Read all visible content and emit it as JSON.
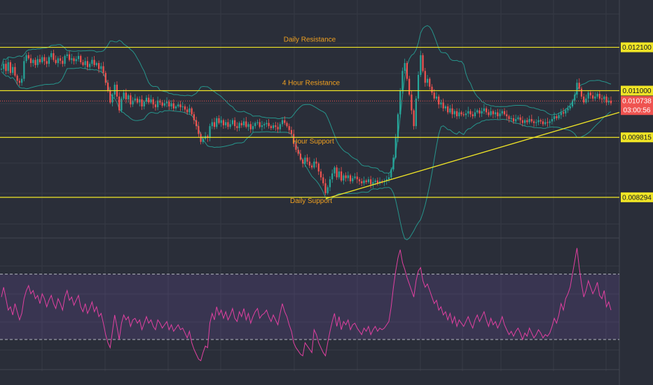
{
  "chart_data": {
    "type": "candlestick",
    "title": "",
    "xlabel": "",
    "ylabel": "",
    "ylim": [
      0.00735,
      0.0133
    ],
    "grid": true,
    "horizontal_levels": [
      {
        "name": "daily-resistance",
        "label": "Daily Resistance",
        "value": 0.0121,
        "value_label": "0.012100",
        "color": "#f0e526"
      },
      {
        "name": "4-hour-resistance",
        "label": "4 Hour Resistance",
        "value": 0.011,
        "value_label": "0.011000",
        "color": "#f0e526"
      },
      {
        "name": "4-hour-support",
        "label": "Hour Support",
        "value": 0.009815,
        "value_label": "0.009815",
        "color": "#f0e526"
      },
      {
        "name": "daily-support",
        "label": "Daily Support",
        "value": 0.008294,
        "value_label": "0.008294",
        "color": "#f0e526"
      }
    ],
    "current_price": {
      "value": 0.010738,
      "value_label": "0.010738",
      "countdown": "03:00:56",
      "color": "#ef5350"
    },
    "trendline": {
      "from_index": 0.0,
      "to_index": 1.0,
      "from_value": 0.00826,
      "to_value": 0.01045,
      "color": "#f0e526"
    },
    "series_closes": [
      0.01155,
      0.01168,
      0.0115,
      0.01172,
      0.01145,
      0.0116,
      0.01138,
      0.01125,
      0.0112,
      0.0113,
      0.01175,
      0.0119,
      0.01182,
      0.0117,
      0.01178,
      0.01165,
      0.0118,
      0.01172,
      0.01185,
      0.01175,
      0.01168,
      0.01185,
      0.01195,
      0.01178,
      0.0117,
      0.01182,
      0.01176,
      0.01168,
      0.01188,
      0.01192,
      0.01178,
      0.01182,
      0.01175,
      0.0118,
      0.01188,
      0.01172,
      0.01165,
      0.01175,
      0.0116,
      0.01168,
      0.01178,
      0.01165,
      0.0117,
      0.01155,
      0.01162,
      0.01145,
      0.0112,
      0.011,
      0.0107,
      0.0109,
      0.01115,
      0.01085,
      0.0105,
      0.0108,
      0.01095,
      0.01078,
      0.01088,
      0.01065,
      0.01075,
      0.0108,
      0.0107,
      0.01078,
      0.0106,
      0.01072,
      0.01082,
      0.0107,
      0.01078,
      0.01065,
      0.01058,
      0.01075,
      0.0107,
      0.01062,
      0.01068,
      0.01072,
      0.0106,
      0.01068,
      0.01055,
      0.0106,
      0.01065,
      0.01058,
      0.0106,
      0.01052,
      0.01045,
      0.01055,
      0.0104,
      0.01025,
      0.0101,
      0.0099,
      0.0097,
      0.00978,
      0.00985,
      0.0098,
      0.0101,
      0.0102,
      0.01008,
      0.0103,
      0.01018,
      0.01025,
      0.01012,
      0.0102,
      0.01008,
      0.01015,
      0.01025,
      0.0101,
      0.01005,
      0.01018,
      0.01012,
      0.01022,
      0.01008,
      0.01015,
      0.01002,
      0.0101,
      0.01018,
      0.0102,
      0.01008,
      0.01012,
      0.01015,
      0.01018,
      0.0101,
      0.01005,
      0.01012,
      0.01008,
      0.01002,
      0.01015,
      0.01025,
      0.01018,
      0.0101,
      0.01,
      0.0099,
      0.00965,
      0.0095,
      0.0094,
      0.00925,
      0.00915,
      0.0093,
      0.0092,
      0.0091,
      0.00905,
      0.0092,
      0.00915,
      0.00895,
      0.0088,
      0.00865,
      0.0084,
      0.00855,
      0.00875,
      0.0089,
      0.00905,
      0.0088,
      0.00895,
      0.00872,
      0.00885,
      0.00878,
      0.00885,
      0.0087,
      0.00878,
      0.00882,
      0.00875,
      0.0087,
      0.00865,
      0.00872,
      0.00868,
      0.00875,
      0.00862,
      0.00868,
      0.00872,
      0.00865,
      0.0087,
      0.00868,
      0.0087,
      0.00875,
      0.0088,
      0.009,
      0.0093,
      0.0098,
      0.0104,
      0.011,
      0.0115,
      0.0117,
      0.0113,
      0.0109,
      0.0105,
      0.0101,
      0.0108,
      0.0114,
      0.0119,
      0.0115,
      0.0112,
      0.0113,
      0.0111,
      0.01095,
      0.0108,
      0.01085,
      0.01065,
      0.0107,
      0.01055,
      0.0106,
      0.01045,
      0.01055,
      0.0104,
      0.01048,
      0.01035,
      0.01045,
      0.0104,
      0.01038,
      0.01042,
      0.01048,
      0.0104,
      0.01035,
      0.01045,
      0.0105,
      0.01042,
      0.01048,
      0.01055,
      0.01045,
      0.01038,
      0.01048,
      0.0104,
      0.01045,
      0.01035,
      0.01042,
      0.01048,
      0.0104,
      0.01035,
      0.01028,
      0.0103,
      0.01022,
      0.01028,
      0.01032,
      0.01025,
      0.01018,
      0.01025,
      0.0102,
      0.01028,
      0.01022,
      0.01018,
      0.0102,
      0.01025,
      0.01022,
      0.01015,
      0.0102,
      0.01018,
      0.01022,
      0.01028,
      0.01035,
      0.0103,
      0.01038,
      0.01045,
      0.01042,
      0.0105,
      0.01055,
      0.0106,
      0.01075,
      0.0109,
      0.0112,
      0.01105,
      0.01085,
      0.0107,
      0.0108,
      0.01095,
      0.01088,
      0.0108,
      0.01085,
      0.01092,
      0.0108,
      0.01078,
      0.01085,
      0.0107,
      0.01074,
      0.01068
    ],
    "rsi": {
      "upper_band": 70,
      "lower_band": 30,
      "ylim": [
        15,
        90
      ],
      "values": [
        56,
        62,
        55,
        48,
        50,
        45,
        52,
        47,
        42,
        46,
        55,
        60,
        63,
        58,
        60,
        55,
        57,
        52,
        58,
        55,
        50,
        54,
        57,
        52,
        49,
        55,
        52,
        48,
        56,
        60,
        54,
        56,
        51,
        54,
        57,
        50,
        47,
        52,
        46,
        49,
        53,
        47,
        50,
        44,
        46,
        40,
        33,
        28,
        25,
        35,
        45,
        38,
        30,
        40,
        45,
        42,
        44,
        38,
        42,
        43,
        40,
        42,
        36,
        40,
        44,
        40,
        42,
        38,
        36,
        42,
        40,
        37,
        39,
        41,
        36,
        39,
        35,
        37,
        39,
        36,
        37,
        34,
        31,
        35,
        28,
        24,
        21,
        18,
        17,
        22,
        26,
        25,
        40,
        46,
        42,
        50,
        45,
        48,
        43,
        47,
        42,
        45,
        49,
        43,
        41,
        47,
        44,
        49,
        42,
        46,
        40,
        44,
        47,
        49,
        43,
        45,
        46,
        48,
        44,
        41,
        45,
        42,
        39,
        46,
        52,
        47,
        44,
        39,
        35,
        28,
        25,
        23,
        21,
        20,
        28,
        26,
        24,
        22,
        36,
        33,
        28,
        25,
        22,
        20,
        28,
        35,
        41,
        46,
        38,
        44,
        36,
        41,
        39,
        42,
        36,
        39,
        40,
        37,
        35,
        33,
        37,
        35,
        38,
        33,
        36,
        38,
        35,
        37,
        36,
        37,
        39,
        41,
        50,
        62,
        72,
        80,
        85,
        77,
        73,
        68,
        64,
        60,
        56,
        66,
        72,
        74,
        66,
        62,
        64,
        60,
        56,
        52,
        54,
        48,
        50,
        45,
        47,
        42,
        46,
        40,
        44,
        38,
        42,
        40,
        38,
        41,
        44,
        40,
        37,
        42,
        45,
        41,
        44,
        47,
        42,
        38,
        43,
        39,
        41,
        37,
        40,
        44,
        39,
        36,
        33,
        35,
        32,
        35,
        37,
        34,
        30,
        34,
        32,
        37,
        34,
        31,
        33,
        36,
        34,
        31,
        33,
        32,
        34,
        38,
        43,
        40,
        45,
        52,
        48,
        55,
        58,
        62,
        70,
        78,
        86,
        74,
        64,
        56,
        60,
        66,
        62,
        58,
        61,
        65,
        57,
        55,
        60,
        50,
        53,
        48
      ]
    }
  }
}
